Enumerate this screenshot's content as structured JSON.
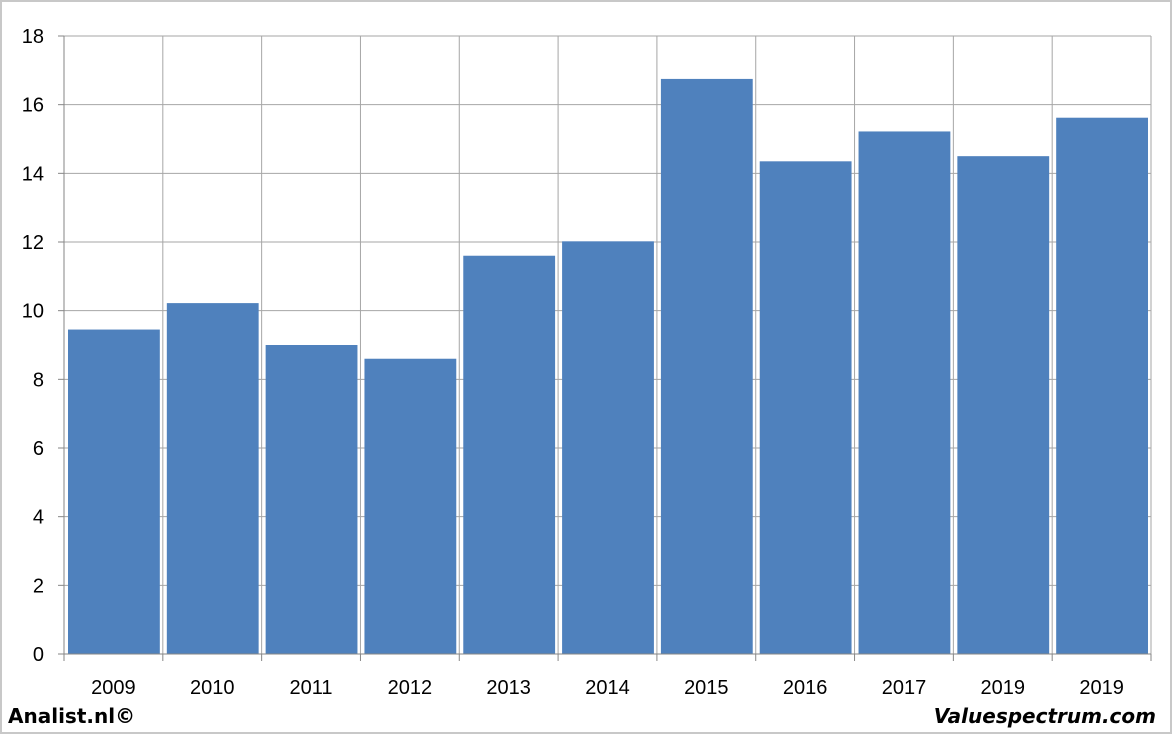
{
  "colors": {
    "bar": "#4f81bd",
    "grid": "#a6a6a6",
    "axis": "#868686",
    "text": "#000000"
  },
  "chart_data": {
    "type": "bar",
    "categories": [
      "2009",
      "2010",
      "2011",
      "2012",
      "2013",
      "2014",
      "2015",
      "2016",
      "2017",
      "2019",
      "2019"
    ],
    "values": [
      9.45,
      10.22,
      9.0,
      8.6,
      11.6,
      12.02,
      16.75,
      14.35,
      15.22,
      14.5,
      15.62
    ],
    "yticks": [
      "0",
      "2",
      "4",
      "6",
      "8",
      "10",
      "12",
      "14",
      "16",
      "18"
    ],
    "ylim": [
      0,
      18
    ],
    "grid": true,
    "legend": "none",
    "title": "",
    "xlabel": "",
    "ylabel": ""
  },
  "footer": {
    "left": "Analist.nl©",
    "right": "Valuespectrum.com"
  }
}
